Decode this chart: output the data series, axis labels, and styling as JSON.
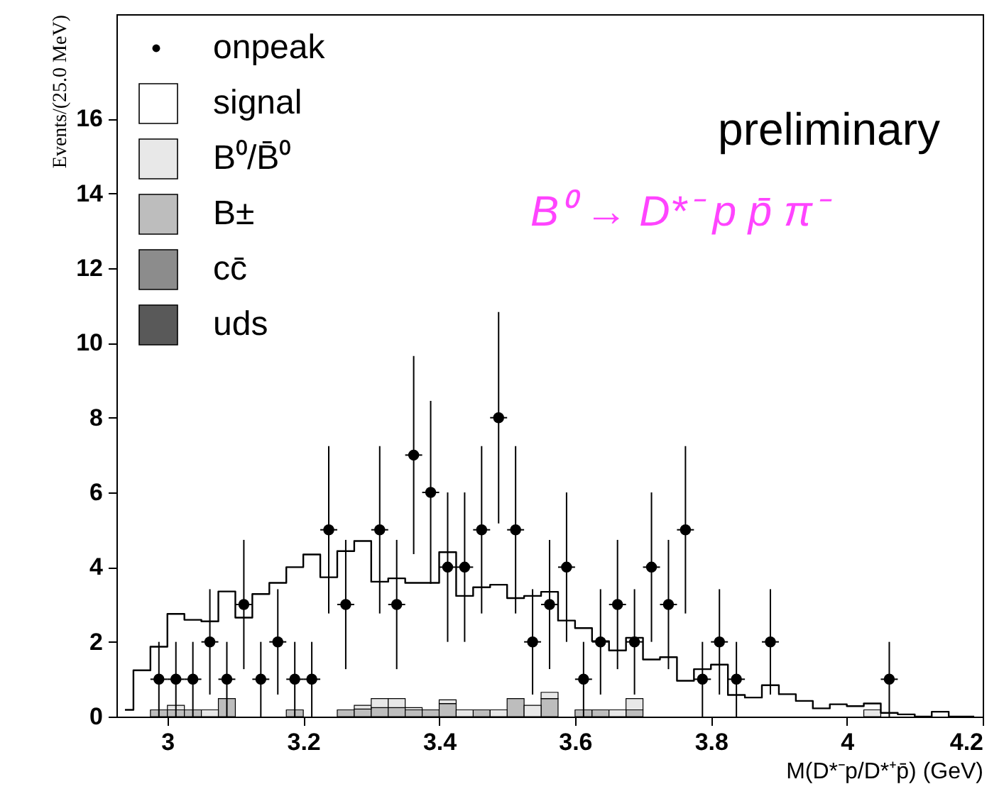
{
  "chart_data": {
    "type": "bar",
    "xlabel": "M(D*⁻p/D*⁺p̄) (GeV)",
    "ylabel": "Events/(25.0 MeV)",
    "xlim": [
      2.925,
      4.2
    ],
    "ylim": [
      0,
      18.8
    ],
    "xticks": [
      3,
      3.2,
      3.4,
      3.6,
      3.8,
      4,
      4.2
    ],
    "yticks": [
      0,
      2,
      4,
      6,
      8,
      10,
      12,
      14,
      16
    ],
    "x": [
      2.9375,
      2.9625,
      2.9875,
      3.0125,
      3.0375,
      3.0625,
      3.0875,
      3.1125,
      3.1375,
      3.1625,
      3.1875,
      3.2125,
      3.2375,
      3.2625,
      3.2875,
      3.3125,
      3.3375,
      3.3625,
      3.3875,
      3.4125,
      3.4375,
      3.4625,
      3.4875,
      3.5125,
      3.5375,
      3.5625,
      3.5875,
      3.6125,
      3.6375,
      3.6625,
      3.6875,
      3.7125,
      3.7375,
      3.7625,
      3.7875,
      3.8125,
      3.8375,
      3.8625,
      3.8875,
      3.9125,
      3.9375,
      3.9625,
      3.9875,
      4.0125,
      4.0375,
      4.0625,
      4.0875,
      4.1125,
      4.1375,
      4.1625,
      4.1875
    ],
    "stacked": true,
    "legend": "top left",
    "series": [
      {
        "name": "onpeak",
        "type": "scatter",
        "color": "#000000",
        "marker": "circle",
        "x": [
          2.9875,
          3.0125,
          3.0375,
          3.0625,
          3.0875,
          3.1125,
          3.1375,
          3.1625,
          3.1875,
          3.2125,
          3.2375,
          3.2625,
          3.3125,
          3.3375,
          3.3625,
          3.3875,
          3.4125,
          3.4375,
          3.4625,
          3.4875,
          3.5125,
          3.5375,
          3.5625,
          3.5875,
          3.6125,
          3.6375,
          3.6625,
          3.6875,
          3.7125,
          3.7375,
          3.7625,
          3.7875,
          3.8125,
          3.8375,
          3.8875,
          4.0625
        ],
        "values": [
          1,
          1,
          1,
          2,
          1,
          3,
          1,
          2,
          1,
          1,
          5,
          3,
          5,
          3,
          7,
          6,
          4,
          4,
          5,
          8,
          5,
          2,
          3,
          4,
          1,
          2,
          3,
          2,
          4,
          3,
          5,
          1,
          2,
          1,
          2,
          1
        ],
        "errors": [
          1,
          1,
          1,
          1.41,
          1,
          1.73,
          1,
          1.41,
          1,
          1,
          2.24,
          1.73,
          2.24,
          1.73,
          2.65,
          2.45,
          2,
          2,
          2.24,
          2.83,
          2.24,
          1.41,
          1.73,
          2,
          1,
          1.41,
          1.73,
          1.41,
          2,
          1.73,
          2.24,
          1,
          1.41,
          1,
          1.41,
          1
        ],
        "xerrors": [
          0.0125,
          0.0125,
          0.0125,
          0.0125,
          0.0125,
          0.0125,
          0.0125,
          0.0125,
          0.0125,
          0.0125,
          0.0125,
          0.0125,
          0.0125,
          0.0125,
          0.0125,
          0.0125,
          0.0125,
          0.0125,
          0.0125,
          0.0125,
          0.0125,
          0.0125,
          0.0125,
          0.0125,
          0.0125,
          0.0125,
          0.0125,
          0.0125,
          0.0125,
          0.0125,
          0.0125,
          0.0125,
          0.0125,
          0.0125,
          0.0125,
          0.0125
        ]
      },
      {
        "name": "signal",
        "type": "step",
        "color": "#000000",
        "values": [
          0.18,
          1.24,
          1.87,
          2.75,
          2.59,
          2.55,
          3.35,
          2.65,
          3.28,
          3.58,
          4.0,
          4.34,
          3.73,
          4.43,
          4.7,
          3.61,
          3.7,
          3.58,
          3.58,
          4.4,
          3.23,
          3.46,
          3.53,
          3.17,
          3.23,
          3.34,
          2.57,
          2.37,
          2.02,
          1.77,
          2.11,
          1.53,
          1.59,
          0.96,
          1.27,
          1.39,
          0.58,
          0.51,
          0.84,
          0.6,
          0.42,
          0.22,
          0.33,
          0.28,
          0.35,
          0.1,
          0.06,
          0,
          0.13,
          0,
          0
        ]
      },
      {
        "name": "B⁰/B̄⁰",
        "color": "#e8e8e8",
        "values": [
          0,
          0,
          0,
          0.12,
          0,
          0.18,
          0,
          0,
          0,
          0,
          0,
          0,
          0,
          0,
          0.1,
          0.24,
          0.24,
          0.06,
          0,
          0.1,
          0.18,
          0,
          0.18,
          0,
          0.3,
          0.17,
          0,
          0,
          0,
          0.18,
          0.3,
          0,
          0,
          0,
          0,
          0,
          0,
          0,
          0,
          0,
          0,
          0,
          0,
          0,
          0.18,
          0,
          0,
          0,
          0,
          0,
          0
        ]
      },
      {
        "name": "B±",
        "color": "#bdbdbd",
        "values": [
          0,
          0,
          0.18,
          0.18,
          0.18,
          0,
          0.48,
          0,
          0,
          0,
          0.18,
          0,
          0,
          0.18,
          0.2,
          0.24,
          0.24,
          0.18,
          0.18,
          0.35,
          0,
          0.18,
          0,
          0.48,
          0,
          0.48,
          0,
          0.18,
          0.18,
          0,
          0.18,
          0,
          0,
          0,
          0,
          0,
          0,
          0,
          0,
          0,
          0,
          0,
          0,
          0,
          0,
          0,
          0,
          0,
          0,
          0,
          0
        ]
      },
      {
        "name": "cc̄",
        "color": "#8c8c8c",
        "values": [
          0,
          0,
          0,
          0,
          0,
          0,
          0,
          0,
          0,
          0,
          0,
          0,
          0,
          0,
          0,
          0,
          0,
          0,
          0,
          0,
          0,
          0,
          0,
          0,
          0,
          0,
          0,
          0,
          0,
          0,
          0,
          0,
          0,
          0,
          0,
          0,
          0,
          0,
          0,
          0,
          0,
          0,
          0,
          0,
          0,
          0,
          0,
          0,
          0,
          0,
          0
        ]
      },
      {
        "name": "uds",
        "color": "#595959",
        "values": [
          0,
          0,
          0,
          0,
          0,
          0,
          0,
          0,
          0,
          0,
          0,
          0,
          0,
          0,
          0,
          0,
          0,
          0,
          0,
          0,
          0,
          0,
          0,
          0,
          0,
          0,
          0,
          0,
          0,
          0,
          0,
          0,
          0,
          0,
          0,
          0,
          0,
          0,
          0,
          0,
          0,
          0,
          0,
          0,
          0,
          0,
          0,
          0,
          0,
          0,
          0
        ]
      }
    ],
    "annotations": [
      "preliminary",
      "B⁰ → D*⁻ p p̄ π⁻"
    ]
  }
}
